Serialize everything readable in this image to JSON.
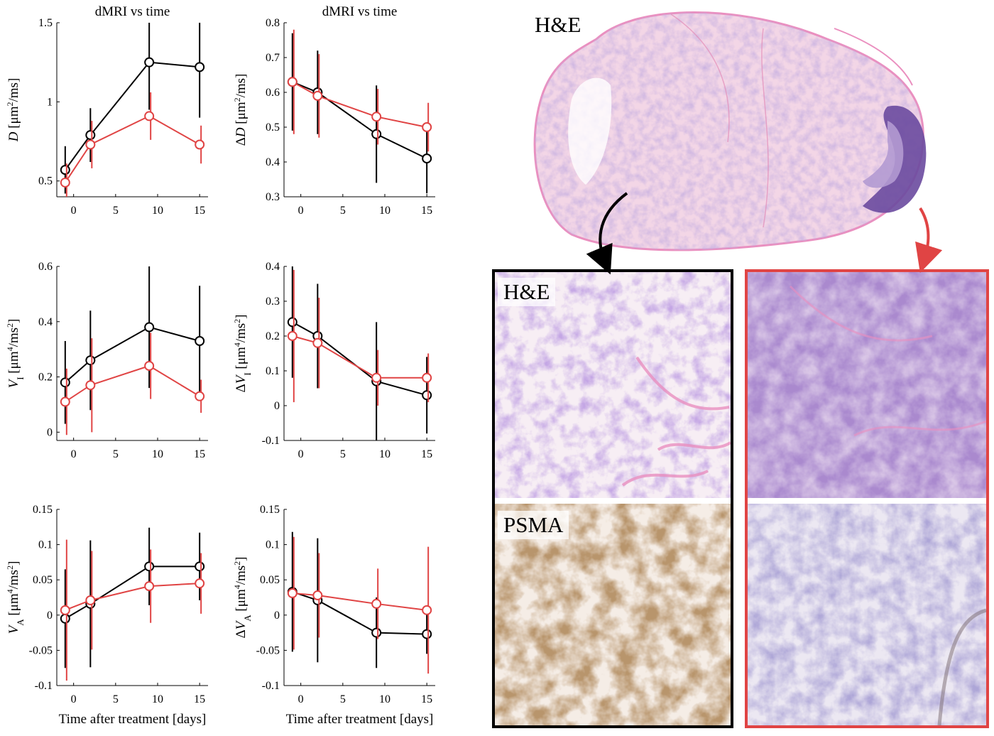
{
  "figure": {
    "colors": {
      "series_black": "#000000",
      "series_red": "#e04444",
      "he_pink": "#ea8fbf",
      "he_purple": "#8a6fb8",
      "psma_brown": "#8a5a30"
    },
    "labels": {
      "whole_section": "H&E",
      "black_panel_top": "H&E",
      "black_panel_bottom": "PSMA"
    }
  },
  "chart_data": [
    {
      "type": "line",
      "title": "dMRI vs time",
      "xlabel": "",
      "ylabel_html": "<tspan font-style='italic'>D</tspan> [μm<tspan baseline-shift='super' font-size='12'>2</tspan>/ms]",
      "x": [
        -1,
        2,
        9,
        15
      ],
      "xlim": [
        -2,
        16
      ],
      "xticks": [
        0,
        5,
        10,
        15
      ],
      "xtick_labels": [
        "0",
        "5",
        "10",
        "15"
      ],
      "ylim": [
        0.4,
        1.5
      ],
      "yticks": [
        0.5,
        1,
        1.5
      ],
      "ytick_labels": [
        "0.5",
        "1",
        "1.5"
      ],
      "series": [
        {
          "color": "#000000",
          "values": [
            0.57,
            0.79,
            1.25,
            1.22
          ],
          "err": [
            0.15,
            0.17,
            0.3,
            0.32
          ]
        },
        {
          "color": "#e04444",
          "values": [
            0.49,
            0.73,
            0.91,
            0.73
          ],
          "err": [
            0.12,
            0.15,
            0.15,
            0.12
          ]
        }
      ]
    },
    {
      "type": "line",
      "title": "dMRI vs time",
      "xlabel": "",
      "ylabel_html": "Δ<tspan font-style='italic'>D</tspan> [μm<tspan baseline-shift='super' font-size='12'>2</tspan>/ms]",
      "x": [
        -1,
        2,
        9,
        15
      ],
      "xlim": [
        -2,
        16
      ],
      "xticks": [
        0,
        5,
        10,
        15
      ],
      "xtick_labels": [
        "0",
        "5",
        "10",
        "15"
      ],
      "ylim": [
        0.3,
        0.8
      ],
      "yticks": [
        0.3,
        0.4,
        0.5,
        0.6,
        0.7,
        0.8
      ],
      "ytick_labels": [
        "0.3",
        "0.4",
        "0.5",
        "0.6",
        "0.7",
        "0.8"
      ],
      "series": [
        {
          "color": "#000000",
          "values": [
            0.63,
            0.6,
            0.48,
            0.41
          ],
          "err": [
            0.14,
            0.12,
            0.14,
            0.1
          ]
        },
        {
          "color": "#e04444",
          "values": [
            0.63,
            0.59,
            0.53,
            0.5
          ],
          "err": [
            0.15,
            0.12,
            0.08,
            0.07
          ]
        }
      ]
    },
    {
      "type": "line",
      "title": "",
      "xlabel": "",
      "ylabel_html": "<tspan font-style='italic'>V</tspan><tspan baseline-shift='sub' font-size='13'>I</tspan> [μm<tspan baseline-shift='super' font-size='12'>4</tspan>/ms<tspan baseline-shift='super' font-size='12'>2</tspan>]",
      "x": [
        -1,
        2,
        9,
        15
      ],
      "xlim": [
        -2,
        16
      ],
      "xticks": [
        0,
        5,
        10,
        15
      ],
      "xtick_labels": [
        "0",
        "5",
        "10",
        "15"
      ],
      "ylim": [
        -0.03,
        0.6
      ],
      "yticks": [
        0,
        0.2,
        0.4,
        0.6
      ],
      "ytick_labels": [
        "0",
        "0.2",
        "0.4",
        "0.6"
      ],
      "series": [
        {
          "color": "#000000",
          "values": [
            0.18,
            0.26,
            0.38,
            0.33
          ],
          "err": [
            0.15,
            0.18,
            0.22,
            0.2
          ]
        },
        {
          "color": "#e04444",
          "values": [
            0.11,
            0.17,
            0.24,
            0.13
          ],
          "err": [
            0.12,
            0.17,
            0.12,
            0.06
          ]
        }
      ]
    },
    {
      "type": "line",
      "title": "",
      "xlabel": "",
      "ylabel_html": "Δ<tspan font-style='italic'>V</tspan><tspan baseline-shift='sub' font-size='13'>I</tspan> [μm<tspan baseline-shift='super' font-size='12'>4</tspan>/ms<tspan baseline-shift='super' font-size='12'>2</tspan>]",
      "x": [
        -1,
        2,
        9,
        15
      ],
      "xlim": [
        -2,
        16
      ],
      "xticks": [
        0,
        5,
        10,
        15
      ],
      "xtick_labels": [
        "0",
        "5",
        "10",
        "15"
      ],
      "ylim": [
        -0.1,
        0.4
      ],
      "yticks": [
        -0.1,
        0,
        0.1,
        0.2,
        0.3,
        0.4
      ],
      "ytick_labels": [
        "-0.1",
        "0",
        "0.1",
        "0.2",
        "0.3",
        "0.4"
      ],
      "series": [
        {
          "color": "#000000",
          "values": [
            0.24,
            0.2,
            0.07,
            0.03
          ],
          "err": [
            0.16,
            0.15,
            0.17,
            0.11
          ]
        },
        {
          "color": "#e04444",
          "values": [
            0.2,
            0.18,
            0.08,
            0.08
          ],
          "err": [
            0.19,
            0.13,
            0.08,
            0.07
          ]
        }
      ]
    },
    {
      "type": "line",
      "title": "",
      "xlabel": "Time after treatment [days]",
      "ylabel_html": "<tspan font-style='italic'>V</tspan><tspan baseline-shift='sub' font-size='13'>A</tspan> [μm<tspan baseline-shift='super' font-size='12'>4</tspan>/ms<tspan baseline-shift='super' font-size='12'>2</tspan>]",
      "x": [
        -1,
        2,
        9,
        15
      ],
      "xlim": [
        -2,
        16
      ],
      "xticks": [
        0,
        5,
        10,
        15
      ],
      "xtick_labels": [
        "0",
        "5",
        "10",
        "15"
      ],
      "ylim": [
        -0.1,
        0.15
      ],
      "yticks": [
        -0.1,
        -0.05,
        0,
        0.05,
        0.1,
        0.15
      ],
      "ytick_labels": [
        "-0.1",
        "-0.05",
        "0",
        "0.05",
        "0.1",
        "0.15"
      ],
      "series": [
        {
          "color": "#000000",
          "values": [
            -0.005,
            0.016,
            0.069,
            0.069
          ],
          "err": [
            0.07,
            0.09,
            0.055,
            0.048
          ]
        },
        {
          "color": "#e04444",
          "values": [
            0.007,
            0.021,
            0.041,
            0.045
          ],
          "err": [
            0.1,
            0.07,
            0.052,
            0.043
          ]
        }
      ]
    },
    {
      "type": "line",
      "title": "",
      "xlabel": "Time after treatment [days]",
      "ylabel_html": "Δ<tspan font-style='italic'>V</tspan><tspan baseline-shift='sub' font-size='13'>A</tspan> [μm<tspan baseline-shift='super' font-size='12'>4</tspan>/ms<tspan baseline-shift='super' font-size='12'>2</tspan>]",
      "x": [
        -1,
        2,
        9,
        15
      ],
      "xlim": [
        -2,
        16
      ],
      "xticks": [
        0,
        5,
        10,
        15
      ],
      "xtick_labels": [
        "0",
        "5",
        "10",
        "15"
      ],
      "ylim": [
        -0.1,
        0.15
      ],
      "yticks": [
        -0.1,
        -0.05,
        0,
        0.05,
        0.1,
        0.15
      ],
      "ytick_labels": [
        "-0.1",
        "-0.05",
        "0",
        "0.05",
        "0.1",
        "0.15"
      ],
      "series": [
        {
          "color": "#000000",
          "values": [
            0.033,
            0.021,
            -0.025,
            -0.027
          ],
          "err": [
            0.085,
            0.088,
            0.05,
            0.028
          ]
        },
        {
          "color": "#e04444",
          "values": [
            0.031,
            0.028,
            0.016,
            0.007
          ],
          "err": [
            0.08,
            0.06,
            0.05,
            0.09
          ]
        }
      ]
    }
  ]
}
